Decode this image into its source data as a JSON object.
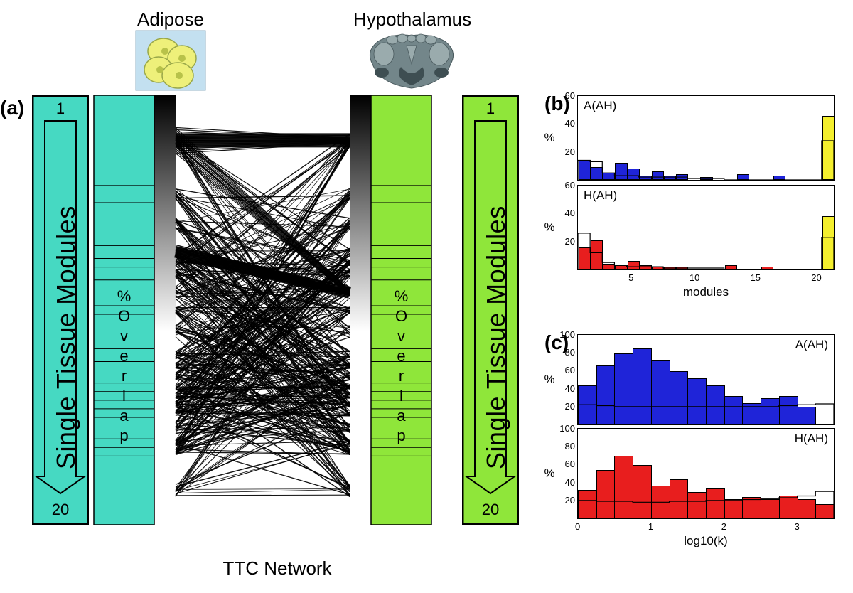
{
  "titles": {
    "adipose": "Adipose",
    "hypothalamus": "Hypothalamus",
    "ttc": "TTC Network"
  },
  "panel_labels": {
    "a": "(a)",
    "b": "(b)",
    "c": "(c)"
  },
  "colors": {
    "adipose_fill": "#46d9c2",
    "hypothalamus_fill": "#8fe63a",
    "blue": "#1f24d8",
    "red": "#e81e1e",
    "yellow": "#f4ef2e",
    "black": "#000000",
    "white": "#ffffff"
  },
  "module_column": {
    "n": 20,
    "row_heights": [
      0.21,
      0.04,
      0.1,
      0.03,
      0.02,
      0.03,
      0.06,
      0.02,
      0.08,
      0.03,
      0.02,
      0.03,
      0.02,
      0.02,
      0.02,
      0.02,
      0.05,
      0.02,
      0.02,
      0.16
    ],
    "top_label": "1",
    "bottom_label": "20",
    "side_label": "Single Tissue Modules",
    "overlap_label_lines": [
      "%",
      "O",
      "v",
      "e",
      "r",
      "l",
      "a",
      "p"
    ]
  },
  "panel_b": {
    "xlabel": "modules",
    "ylabel": "%",
    "ymax": 60,
    "yticks": [
      20,
      40,
      60
    ],
    "x_ticks": [
      5,
      10,
      15,
      20
    ],
    "nbars": 21,
    "charts": [
      {
        "label": "A(AH)",
        "color_key": "blue",
        "bars": [
          13,
          8,
          4,
          11,
          7,
          2,
          5,
          2,
          3,
          0,
          1,
          0,
          0,
          3,
          0,
          0,
          2,
          0,
          0,
          0,
          45
        ],
        "outline": [
          14,
          13,
          5,
          3,
          3,
          2,
          2,
          2,
          2,
          1,
          1,
          1,
          0,
          0,
          0,
          0,
          0,
          0,
          0,
          0,
          28
        ],
        "last_bar_color_key": "yellow"
      },
      {
        "label": "H(AH)",
        "color_key": "red",
        "bars": [
          15,
          20,
          3,
          2,
          5,
          2,
          1,
          1,
          1,
          0,
          0,
          0,
          2,
          0,
          0,
          1,
          0,
          0,
          0,
          0,
          37
        ],
        "outline": [
          26,
          12,
          5,
          3,
          2,
          2,
          2,
          1,
          1,
          1,
          1,
          1,
          0,
          0,
          0,
          0,
          0,
          0,
          0,
          0,
          23
        ],
        "last_bar_color_key": "yellow"
      }
    ]
  },
  "panel_c": {
    "xlabel": "log10(k)",
    "ylabel": "%",
    "ymax": 100,
    "yticks": [
      20,
      40,
      60,
      80,
      100
    ],
    "xmax": 3.5,
    "x_ticks": [
      0,
      1,
      2,
      3
    ],
    "bin_width": 0.25,
    "nbins": 14,
    "charts": [
      {
        "label": "A(AH)",
        "color_key": "blue",
        "bars": [
          42,
          64,
          78,
          83,
          70,
          58,
          50,
          42,
          30,
          22,
          28,
          30,
          18,
          0
        ],
        "outline": [
          22,
          21,
          20,
          20,
          20,
          20,
          20,
          20,
          20,
          20,
          20,
          21,
          22,
          23
        ]
      },
      {
        "label": "H(AH)",
        "color_key": "red",
        "bars": [
          30,
          52,
          68,
          58,
          35,
          42,
          28,
          32,
          20,
          22,
          20,
          24,
          20,
          14
        ],
        "outline": [
          20,
          19,
          19,
          18,
          18,
          19,
          19,
          20,
          20,
          21,
          22,
          23,
          25,
          30
        ]
      }
    ]
  }
}
